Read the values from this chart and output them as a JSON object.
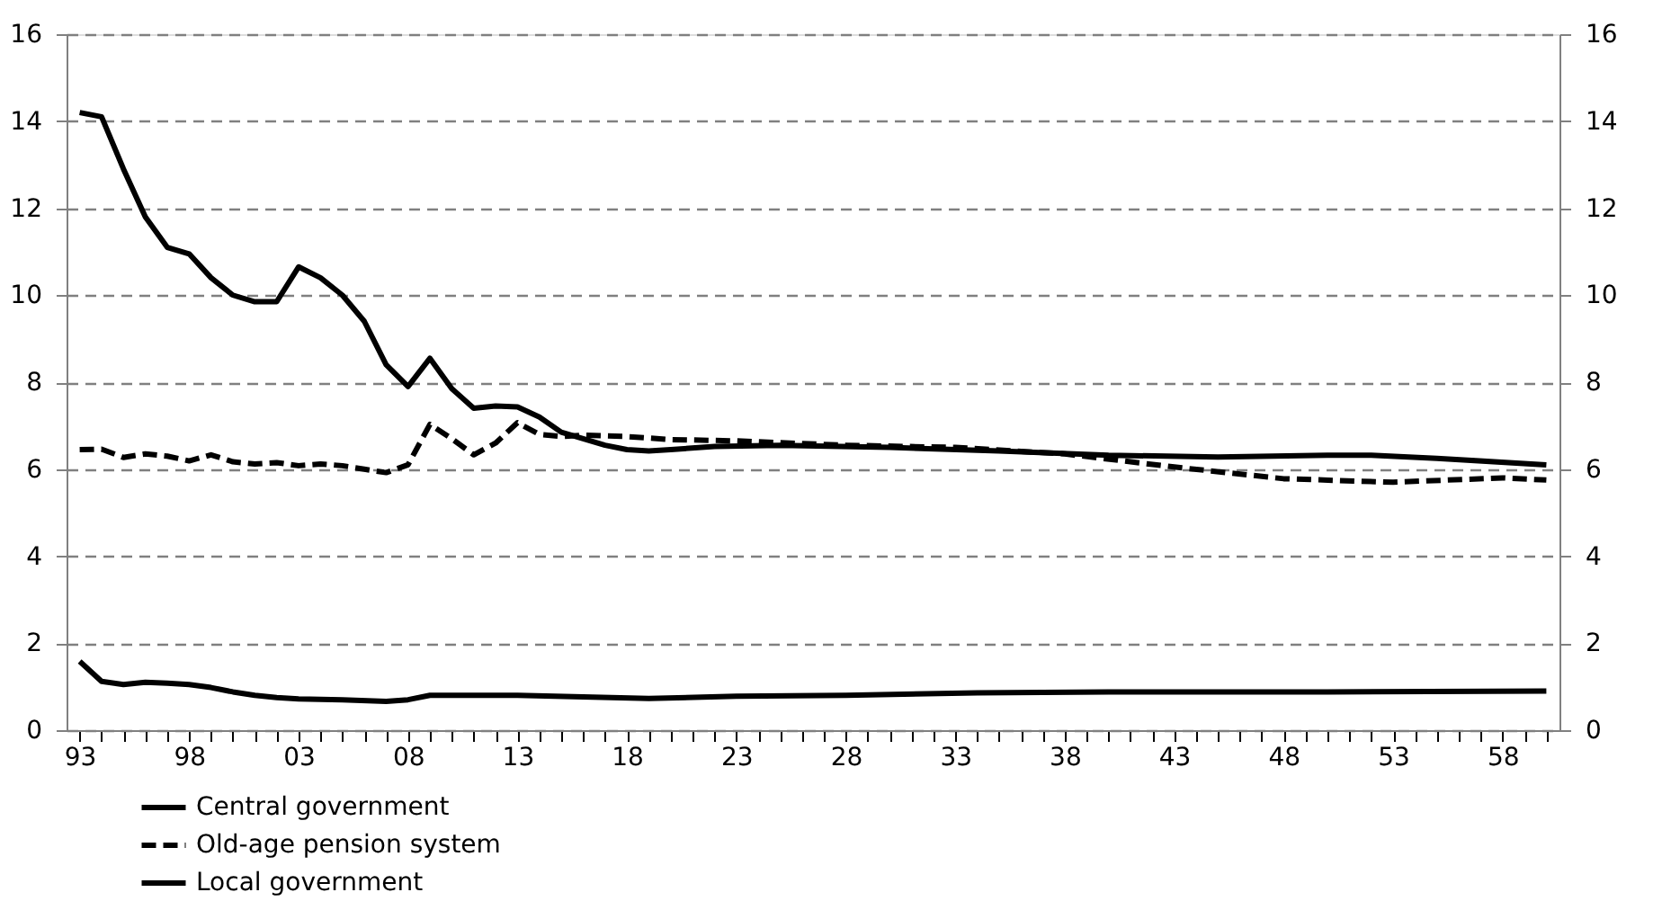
{
  "chart_data": {
    "type": "line",
    "xlim": [
      1992.4,
      2060.6
    ],
    "xticks": [
      {
        "value": 1993,
        "label": "93"
      },
      {
        "value": 1994,
        "label": null
      },
      {
        "value": 1995,
        "label": null
      },
      {
        "value": 1996,
        "label": null
      },
      {
        "value": 1997,
        "label": null
      },
      {
        "value": 1998,
        "label": "98"
      },
      {
        "value": 1999,
        "label": null
      },
      {
        "value": 2000,
        "label": null
      },
      {
        "value": 2001,
        "label": null
      },
      {
        "value": 2002,
        "label": null
      },
      {
        "value": 2003,
        "label": "03"
      },
      {
        "value": 2004,
        "label": null
      },
      {
        "value": 2005,
        "label": null
      },
      {
        "value": 2006,
        "label": null
      },
      {
        "value": 2007,
        "label": null
      },
      {
        "value": 2008,
        "label": "08"
      },
      {
        "value": 2009,
        "label": null
      },
      {
        "value": 2010,
        "label": null
      },
      {
        "value": 2011,
        "label": null
      },
      {
        "value": 2012,
        "label": null
      },
      {
        "value": 2013,
        "label": "13"
      },
      {
        "value": 2014,
        "label": null
      },
      {
        "value": 2015,
        "label": null
      },
      {
        "value": 2016,
        "label": null
      },
      {
        "value": 2017,
        "label": null
      },
      {
        "value": 2018,
        "label": "18"
      },
      {
        "value": 2019,
        "label": null
      },
      {
        "value": 2020,
        "label": null
      },
      {
        "value": 2021,
        "label": null
      },
      {
        "value": 2022,
        "label": null
      },
      {
        "value": 2023,
        "label": "23"
      },
      {
        "value": 2024,
        "label": null
      },
      {
        "value": 2025,
        "label": null
      },
      {
        "value": 2026,
        "label": null
      },
      {
        "value": 2027,
        "label": null
      },
      {
        "value": 2028,
        "label": "28"
      },
      {
        "value": 2029,
        "label": null
      },
      {
        "value": 2030,
        "label": null
      },
      {
        "value": 2031,
        "label": null
      },
      {
        "value": 2032,
        "label": null
      },
      {
        "value": 2033,
        "label": "33"
      },
      {
        "value": 2034,
        "label": null
      },
      {
        "value": 2035,
        "label": null
      },
      {
        "value": 2036,
        "label": null
      },
      {
        "value": 2037,
        "label": null
      },
      {
        "value": 2038,
        "label": "38"
      },
      {
        "value": 2039,
        "label": null
      },
      {
        "value": 2040,
        "label": null
      },
      {
        "value": 2041,
        "label": null
      },
      {
        "value": 2042,
        "label": null
      },
      {
        "value": 2043,
        "label": "43"
      },
      {
        "value": 2044,
        "label": null
      },
      {
        "value": 2045,
        "label": null
      },
      {
        "value": 2046,
        "label": null
      },
      {
        "value": 2047,
        "label": null
      },
      {
        "value": 2048,
        "label": "48"
      },
      {
        "value": 2049,
        "label": null
      },
      {
        "value": 2050,
        "label": null
      },
      {
        "value": 2051,
        "label": null
      },
      {
        "value": 2052,
        "label": null
      },
      {
        "value": 2053,
        "label": "53"
      },
      {
        "value": 2054,
        "label": null
      },
      {
        "value": 2055,
        "label": null
      },
      {
        "value": 2056,
        "label": null
      },
      {
        "value": 2057,
        "label": null
      },
      {
        "value": 2058,
        "label": "58"
      },
      {
        "value": 2059,
        "label": null
      },
      {
        "value": 2060,
        "label": null
      }
    ],
    "ylim": [
      0,
      16
    ],
    "yticks": [
      0,
      2,
      4,
      6,
      8,
      10,
      12,
      14,
      16
    ],
    "y2lim": [
      0,
      16
    ],
    "y2ticks": [
      0,
      2,
      4,
      6,
      8,
      10,
      12,
      14,
      16
    ],
    "grid": "y",
    "legend": "bottom left",
    "series": [
      {
        "name": "Central government",
        "color": "#000000",
        "line_style": "solid",
        "x": [
          1993,
          1994,
          1995,
          1996,
          1997,
          1998,
          1999,
          2000,
          2001,
          2002,
          2003,
          2004,
          2005,
          2006,
          2007,
          2008,
          2009,
          2010,
          2011,
          2012,
          2013,
          2014,
          2015,
          2016,
          2017,
          2018,
          2019,
          2020,
          2022,
          2025,
          2030,
          2035,
          2040,
          2045,
          2050,
          2052,
          2055,
          2060
        ],
        "values": [
          14.2,
          14.1,
          12.9,
          11.8,
          11.1,
          10.95,
          10.4,
          10.0,
          9.85,
          9.85,
          10.65,
          10.4,
          10.0,
          9.4,
          8.4,
          7.9,
          8.55,
          7.85,
          7.4,
          7.45,
          7.43,
          7.2,
          6.85,
          6.7,
          6.55,
          6.45,
          6.42,
          6.45,
          6.52,
          6.55,
          6.5,
          6.42,
          6.32,
          6.28,
          6.32,
          6.32,
          6.25,
          6.1
        ]
      },
      {
        "name": "Old-age pension system",
        "color": "#000000",
        "line_style": "dashed",
        "x": [
          1993,
          1994,
          1995,
          1996,
          1997,
          1998,
          1999,
          2000,
          2001,
          2002,
          2003,
          2004,
          2005,
          2006,
          2007,
          2008,
          2009,
          2010,
          2011,
          2012,
          2013,
          2014,
          2015,
          2016,
          2018,
          2020,
          2023,
          2028,
          2033,
          2038,
          2043,
          2048,
          2053,
          2058,
          2060
        ],
        "values": [
          6.45,
          6.46,
          6.27,
          6.35,
          6.3,
          6.19,
          6.33,
          6.17,
          6.12,
          6.15,
          6.08,
          6.12,
          6.08,
          6.0,
          5.92,
          6.1,
          7.03,
          6.7,
          6.33,
          6.6,
          7.07,
          6.8,
          6.75,
          6.78,
          6.75,
          6.68,
          6.65,
          6.55,
          6.5,
          6.35,
          6.05,
          5.78,
          5.7,
          5.8,
          5.75
        ]
      },
      {
        "name": "Local government",
        "color": "#000000",
        "line_style": "solid",
        "x": [
          1993,
          1994,
          1995,
          1996,
          1997,
          1998,
          1999,
          2000,
          2001,
          2002,
          2003,
          2005,
          2007,
          2008,
          2009,
          2013,
          2019,
          2023,
          2028,
          2034,
          2040,
          2050,
          2060
        ],
        "values": [
          1.58,
          1.12,
          1.05,
          1.1,
          1.08,
          1.05,
          0.98,
          0.88,
          0.8,
          0.75,
          0.72,
          0.7,
          0.66,
          0.7,
          0.8,
          0.8,
          0.73,
          0.78,
          0.8,
          0.86,
          0.88,
          0.88,
          0.9
        ]
      }
    ]
  }
}
